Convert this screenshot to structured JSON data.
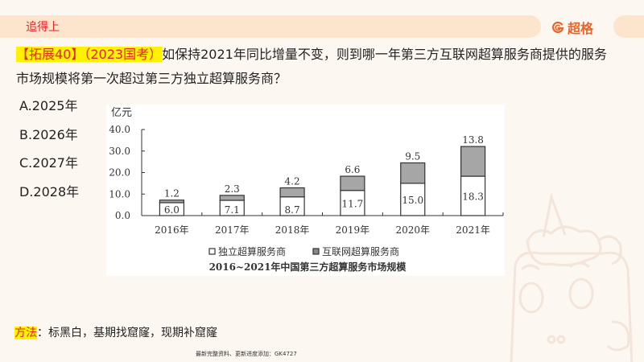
{
  "header": {
    "section_title": "追得上",
    "brand_name": "超格",
    "brand_icon": "g-logo-icon"
  },
  "question": {
    "tag": "【拓展40】（2023国考）",
    "text": "如保持2021年同比增量不变，则到哪一年第三方互联网超算服务商提供的服务市场规模将第一次超过第三方独立超算服务商？"
  },
  "options": [
    {
      "label": "A.2025年"
    },
    {
      "label": "B.2026年"
    },
    {
      "label": "C.2027年"
    },
    {
      "label": "D.2028年"
    }
  ],
  "method": {
    "label": "方法",
    "text": "：标黑白，基期找窟窿，现期补窟窿"
  },
  "footer_note": "最新完整资料、更新进度添加：GK4727",
  "chart_data": {
    "type": "bar",
    "stacked": true,
    "title": "2016~2021年中国第三方超算服务市场规模",
    "ylabel": "亿元",
    "xlabel": "",
    "ylim": [
      0,
      40
    ],
    "yticks": [
      "0.0",
      "10.0",
      "20.0",
      "30.0",
      "40.0"
    ],
    "categories": [
      "2016年",
      "2017年",
      "2018年",
      "2019年",
      "2020年",
      "2021年"
    ],
    "series": [
      {
        "name": "独立超算服务商",
        "color": "#ffffff",
        "values": [
          6.0,
          7.1,
          8.7,
          11.7,
          15.0,
          18.3
        ],
        "labels": [
          "6.0",
          "7.1",
          "8.7",
          "11.7",
          "15.0",
          "18.3"
        ]
      },
      {
        "name": "互联网超算服务商",
        "color": "#a6a6a6",
        "values": [
          1.2,
          2.3,
          4.2,
          6.6,
          9.5,
          13.8
        ],
        "labels": [
          "1.2",
          "2.3",
          "4.2",
          "6.6",
          "9.5",
          "13.8"
        ]
      }
    ],
    "legend_position": "bottom",
    "grid": false
  }
}
